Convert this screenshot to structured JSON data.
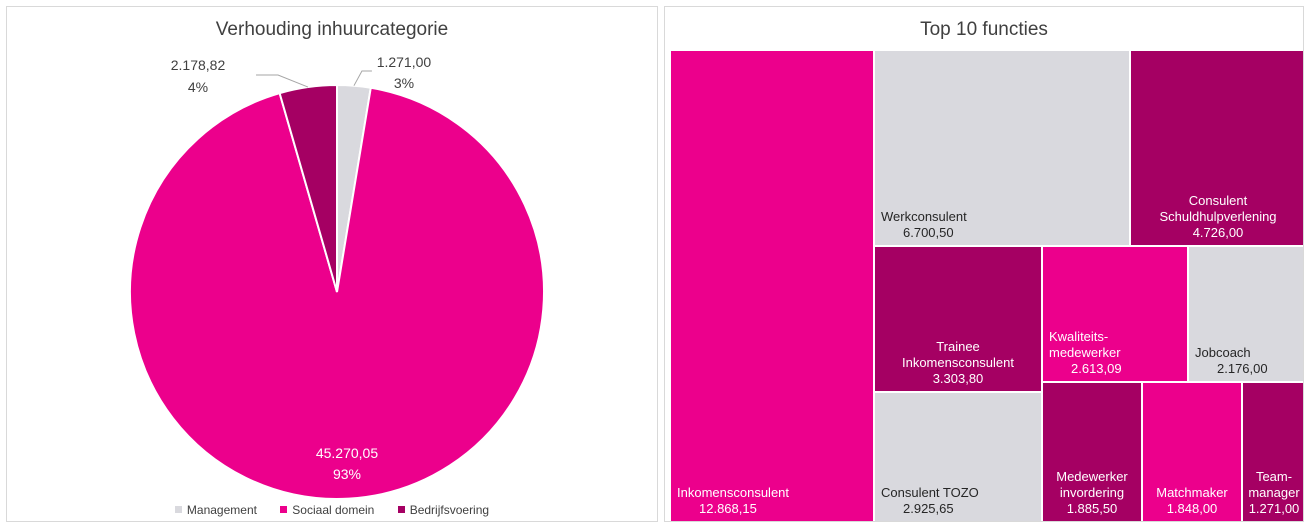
{
  "chart_data": [
    {
      "type": "pie",
      "title": "Verhouding inhuurcategorie",
      "slices": [
        {
          "name": "Management",
          "value": 1271.0,
          "value_label": "1.271,00",
          "percent_label": "3%",
          "color": "#d9d9de"
        },
        {
          "name": "Sociaal domein",
          "value": 45270.05,
          "value_label": "45.270,05",
          "percent_label": "93%",
          "color": "#ec008c"
        },
        {
          "name": "Bedrijfsvoering",
          "value": 2178.82,
          "value_label": "2.178,82",
          "percent_label": "4%",
          "color": "#a50063"
        }
      ],
      "legend_position": "bottom"
    },
    {
      "type": "treemap",
      "title": "Top 10 functies",
      "items": [
        {
          "name": "Inkomensconsulent",
          "value": 12868.15,
          "value_label": "12.868,15",
          "color": "#ec008c"
        },
        {
          "name": "Werkconsulent",
          "value": 6700.5,
          "value_label": "6.700,50",
          "color": "#d9d9de"
        },
        {
          "name": "Consulent Schuldhulpverlening",
          "value": 4726.0,
          "value_label": "4.726,00",
          "color": "#a50063"
        },
        {
          "name": "Trainee Inkomensconsulent",
          "value": 3303.8,
          "value_label": "3.303,80",
          "color": "#a50063"
        },
        {
          "name": "Consulent TOZO",
          "value": 2925.65,
          "value_label": "2.925,65",
          "color": "#d9d9de"
        },
        {
          "name": "Kwaliteits-medewerker",
          "value": 2613.09,
          "value_label": "2.613,09",
          "color": "#ec008c"
        },
        {
          "name": "Jobcoach",
          "value": 2176.0,
          "value_label": "2.176,00",
          "color": "#d9d9de"
        },
        {
          "name": "Medewerker invordering",
          "value": 1885.5,
          "value_label": "1.885,50",
          "color": "#a50063"
        },
        {
          "name": "Matchmaker",
          "value": 1848.0,
          "value_label": "1.848,00",
          "color": "#ec008c"
        },
        {
          "name": "Team-manager",
          "value": 1271.0,
          "value_label": "1.271,00",
          "color": "#a50063"
        }
      ]
    }
  ]
}
